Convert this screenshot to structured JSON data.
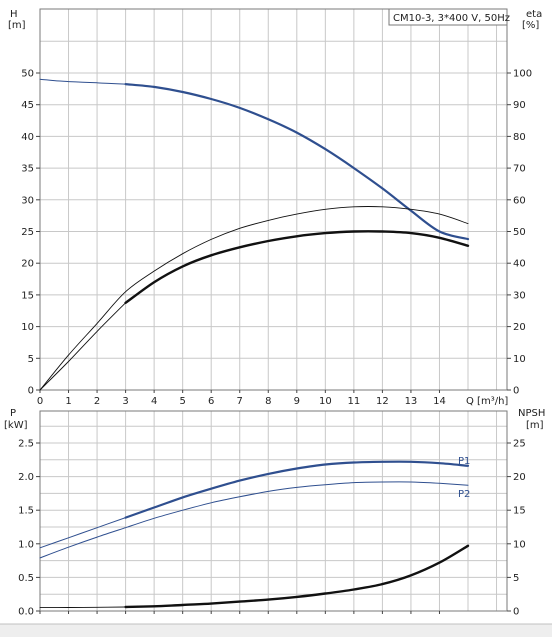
{
  "chart_data": [
    {
      "type": "line",
      "title": "CM10-3, 3*400 V, 50Hz",
      "xlabel": "Q [m³/h]",
      "ylabel": "H",
      "ylabel_unit": "[m]",
      "y2label": "eta",
      "y2label_unit": "[%]",
      "xlim": [
        0,
        15
      ],
      "ylim": [
        0,
        55
      ],
      "y2lim": [
        0,
        110
      ],
      "grid": true,
      "x_ticks": [
        "0",
        "1",
        "2",
        "3",
        "4",
        "5",
        "6",
        "7",
        "8",
        "9",
        "10",
        "11",
        "12",
        "13",
        "14"
      ],
      "y_ticks": [
        "0",
        "5",
        "10",
        "15",
        "20",
        "25",
        "30",
        "35",
        "40",
        "45",
        "50"
      ],
      "y2_ticks": [
        "0",
        "10",
        "20",
        "30",
        "40",
        "50",
        "60",
        "70",
        "80",
        "90",
        "100"
      ],
      "series": [
        {
          "axis": "y",
          "style": "blue-thin",
          "x": [
            0,
            0.5,
            1,
            1.5,
            2,
            2.5,
            3
          ],
          "y": [
            49,
            48.8,
            48.65,
            48.55,
            48.45,
            48.35,
            48.25
          ]
        },
        {
          "axis": "y",
          "style": "blue-thick",
          "x": [
            3,
            4,
            5,
            6,
            7,
            8,
            9,
            10,
            11,
            12,
            13,
            14,
            15
          ],
          "y": [
            48.25,
            47.8,
            47.0,
            45.9,
            44.5,
            42.7,
            40.6,
            38.0,
            35.0,
            31.8,
            28.3,
            25.0,
            23.8
          ]
        },
        {
          "axis": "y2",
          "style": "thin",
          "x": [
            0,
            1,
            2,
            3,
            4,
            5,
            6,
            7,
            8,
            9,
            10,
            11,
            12,
            13,
            14,
            15
          ],
          "y": [
            0,
            11,
            21,
            31,
            37.5,
            43,
            47.5,
            51,
            53.5,
            55.5,
            57,
            57.8,
            57.8,
            57,
            55.5,
            52.5
          ]
        },
        {
          "axis": "y2",
          "style": "thin",
          "x": [
            0,
            1,
            2,
            3
          ],
          "y": [
            0,
            9,
            18.5,
            27.5
          ]
        },
        {
          "axis": "y2",
          "style": "thick",
          "x": [
            3,
            4,
            5,
            6,
            7,
            8,
            9,
            10,
            11,
            12,
            13,
            14,
            15
          ],
          "y": [
            27.5,
            34,
            39,
            42.5,
            45,
            47,
            48.5,
            49.5,
            50,
            50,
            49.5,
            48,
            45.5
          ]
        }
      ]
    },
    {
      "type": "line",
      "ylabel": "P",
      "ylabel_unit": "[kW]",
      "y2label": "NPSH",
      "y2label_unit": "[m]",
      "xlim": [
        0,
        15
      ],
      "ylim": [
        0,
        2.75
      ],
      "y2lim": [
        0,
        27.5
      ],
      "grid": true,
      "y_ticks": [
        "0.0",
        "0.5",
        "1.0",
        "1.5",
        "2.0",
        "2.5"
      ],
      "y2_ticks": [
        "0",
        "5",
        "10",
        "15",
        "20",
        "25"
      ],
      "series": [
        {
          "name": "P1",
          "axis": "y",
          "style": "blue-thin",
          "x": [
            0,
            1,
            2,
            3
          ],
          "y": [
            0.94,
            1.09,
            1.24,
            1.39
          ]
        },
        {
          "name": "P1",
          "axis": "y",
          "style": "blue-thick",
          "x": [
            3,
            4,
            5,
            6,
            7,
            8,
            9,
            10,
            11,
            12,
            13,
            14,
            15
          ],
          "y": [
            1.39,
            1.54,
            1.69,
            1.82,
            1.94,
            2.04,
            2.12,
            2.18,
            2.21,
            2.22,
            2.22,
            2.2,
            2.16
          ]
        },
        {
          "name": "P2",
          "axis": "y",
          "style": "blue-thin",
          "x": [
            0,
            1,
            2,
            3,
            4,
            5,
            6,
            7,
            8,
            9,
            10,
            11,
            12,
            13,
            14,
            15
          ],
          "y": [
            0.79,
            0.95,
            1.1,
            1.24,
            1.38,
            1.5,
            1.61,
            1.7,
            1.78,
            1.84,
            1.88,
            1.91,
            1.92,
            1.92,
            1.9,
            1.87
          ]
        },
        {
          "axis": "y2",
          "style": "thin",
          "x": [
            0,
            1,
            2,
            3
          ],
          "y": [
            0.5,
            0.52,
            0.55,
            0.6
          ]
        },
        {
          "axis": "y2",
          "style": "thick",
          "x": [
            3,
            4,
            5,
            6,
            7,
            8,
            9,
            10,
            11,
            12,
            13,
            14,
            15
          ],
          "y": [
            0.6,
            0.7,
            0.9,
            1.1,
            1.4,
            1.7,
            2.1,
            2.6,
            3.2,
            4.0,
            5.3,
            7.2,
            9.7
          ]
        }
      ]
    }
  ]
}
